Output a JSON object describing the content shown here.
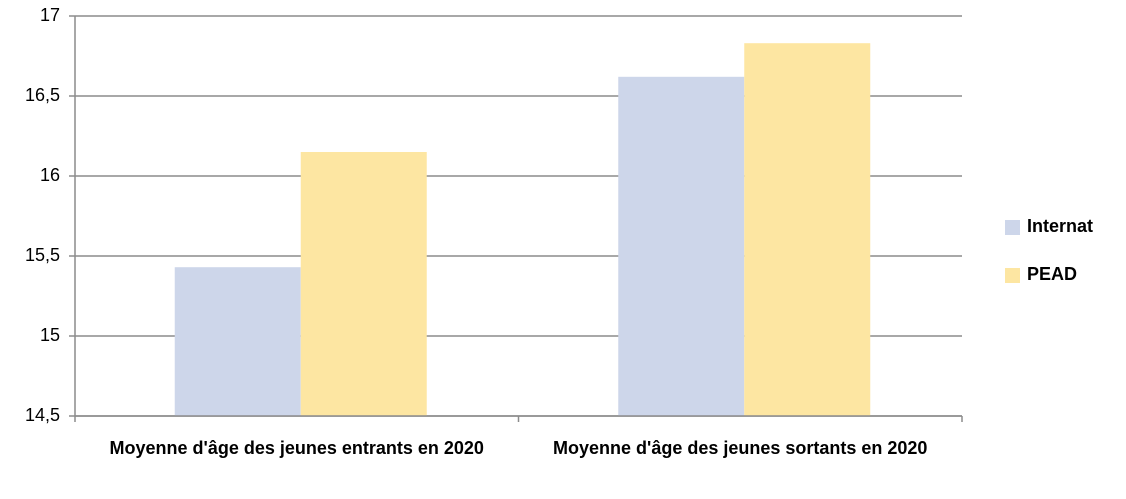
{
  "chart_data": {
    "type": "bar",
    "categories": [
      "Moyenne d'âge des jeunes entrants en 2020",
      "Moyenne d'âge des jeunes sortants en 2020"
    ],
    "series": [
      {
        "name": "Internat",
        "color": "#cdd6ea",
        "values": [
          15.43,
          16.62
        ]
      },
      {
        "name": "PEAD",
        "color": "#fde6a2",
        "values": [
          16.15,
          16.83
        ]
      }
    ],
    "ylim": [
      14.5,
      17
    ],
    "yticks": [
      {
        "value": 14.5,
        "label": "14,5"
      },
      15,
      {
        "value": 15.5,
        "label": "15,5"
      },
      16,
      {
        "value": 16.5,
        "label": "16,5"
      },
      17
    ],
    "grid": true,
    "legend": "right"
  }
}
